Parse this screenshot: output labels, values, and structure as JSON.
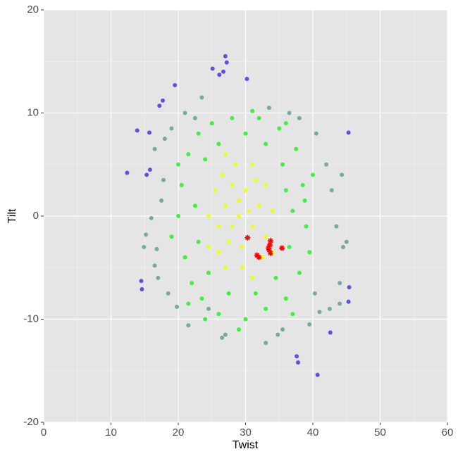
{
  "chart_data": {
    "type": "scatter",
    "x_label": "Twist",
    "y_label": "Tilt",
    "xlim": [
      0,
      60
    ],
    "ylim": [
      -20,
      20
    ],
    "xticks": [
      0,
      10,
      20,
      30,
      40,
      50,
      60
    ],
    "yticks": [
      -20,
      -10,
      0,
      10,
      20
    ],
    "grid": true,
    "minor_grid": true,
    "series": [
      {
        "color": "#78a8a0",
        "marker": "circle",
        "x": [
          16.0,
          15.2,
          14.9,
          16.5,
          17.0,
          18.5,
          17.5,
          16.5,
          18.0,
          19.0,
          21.0,
          21.5,
          23.5,
          24.5,
          26.5,
          27.0,
          33.0,
          35.5,
          39.5,
          41.0,
          42.5,
          44.0,
          44.0,
          44.5,
          45.0,
          44.3,
          43.5,
          42.0,
          40.5,
          38.0,
          36.5,
          33.5,
          16.8,
          17.8,
          19.8,
          22.5,
          40.3,
          42.8,
          34.8
        ],
        "values": [
          -0.2,
          -1.8,
          -3.0,
          -4.8,
          -6.0,
          -7.5,
          1.5,
          6.5,
          7.5,
          8.5,
          10.0,
          -10.6,
          11.5,
          -9.0,
          -11.8,
          -11.5,
          -12.3,
          -11.0,
          -10.5,
          -9.3,
          -9.0,
          -8.5,
          -6.5,
          -3.0,
          -2.5,
          4.0,
          -1.0,
          5.0,
          8.0,
          9.5,
          10.0,
          10.5,
          -3.2,
          3.5,
          -8.8,
          9.5,
          -7.5,
          2.5,
          -11.5
        ]
      },
      {
        "color": "#40f040",
        "marker": "circle",
        "x": [
          20,
          20.5,
          21,
          21.5,
          22,
          23,
          23.5,
          25,
          26,
          28,
          30,
          32,
          33,
          35,
          36,
          37.5,
          38,
          38.5,
          39,
          38.8,
          22.5,
          23,
          24,
          24.5,
          26,
          27.5,
          30,
          31.5,
          33,
          34.5,
          35.5,
          36.5,
          37,
          36,
          19,
          21.5,
          37,
          36,
          24,
          29,
          31,
          20,
          39.5,
          40
        ],
        "values": [
          0,
          3,
          -4,
          6,
          -6.5,
          8,
          -8,
          9,
          -9.5,
          9.5,
          -10,
          9.5,
          -9,
          8.5,
          -8,
          6.5,
          -5.5,
          3,
          -1,
          1.5,
          1,
          -2.5,
          5.5,
          -5.5,
          7,
          -7.5,
          8,
          -7.5,
          7,
          -6,
          5,
          -3,
          0.5,
          2.5,
          -2,
          -8.5,
          -9.5,
          9,
          -10,
          -11,
          10.2,
          5,
          -3.5,
          4
        ]
      },
      {
        "color": "#eeff20",
        "marker": "circle",
        "x": [
          29,
          27,
          31,
          28,
          30,
          29.5,
          26,
          32,
          27.5,
          31.5,
          25.5,
          33,
          28.5,
          29.5,
          26.5,
          32.5,
          24.5,
          34,
          27,
          31,
          30.5,
          28,
          26,
          33,
          29,
          27,
          31,
          24.5,
          34
        ],
        "values": [
          0,
          1,
          -1,
          3,
          2.5,
          -3,
          -1,
          1,
          -2.5,
          3.5,
          2.5,
          -2,
          5,
          -5,
          4,
          -4,
          0,
          0.5,
          -5,
          5,
          0.5,
          -1,
          -3.5,
          3,
          1.5,
          6,
          -6,
          -3,
          -3.5
        ]
      },
      {
        "color": "#6050e0",
        "marker": "circle",
        "x": [
          12.4,
          13.9,
          14.6,
          14.5,
          15.7,
          17.7,
          17.2,
          19.5,
          25.1,
          26.1,
          27.0,
          27.2,
          26.7,
          30.2,
          45.3,
          45.4,
          45.3,
          42.6,
          37.6,
          37.8,
          40.7,
          15.8,
          15.3
        ],
        "values": [
          4.2,
          8.3,
          -7.1,
          -6.3,
          8.1,
          11.2,
          10.7,
          12.7,
          14.3,
          13.7,
          15.5,
          14.9,
          14.0,
          13.3,
          8.1,
          -6.9,
          -8.3,
          -11.3,
          -13.6,
          -14.2,
          -15.4,
          4.5,
          4.0
        ]
      },
      {
        "color": "#ff0000",
        "marker": "star",
        "x": [
          30.3,
          31.7,
          32.0,
          33.4,
          33.6,
          33.7,
          33.7,
          35.4,
          33.5
        ],
        "values": [
          -2.1,
          -3.8,
          -4.0,
          -3.1,
          -2.8,
          -2.4,
          -3.6,
          -3.1,
          -3.3
        ]
      }
    ]
  }
}
